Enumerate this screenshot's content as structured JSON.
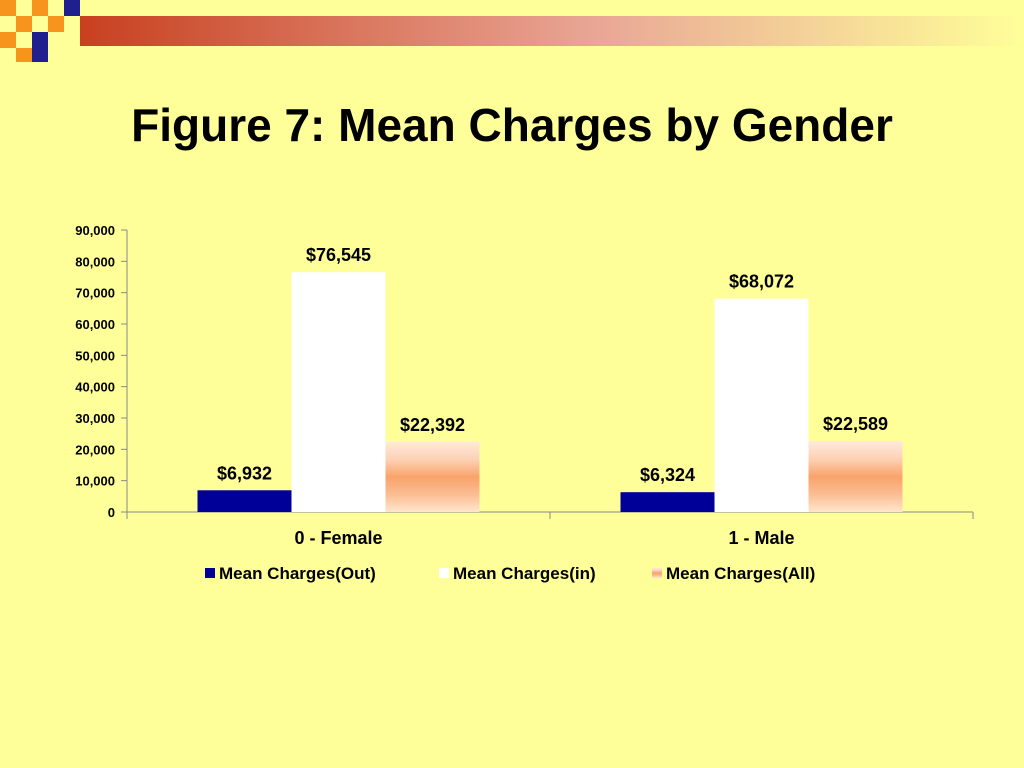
{
  "slide": {
    "title": "Figure 7: Mean Charges by Gender"
  },
  "colors": {
    "background": "#FFFF99",
    "series_out": "#000099",
    "series_in": "#FFFFFF",
    "series_all_light": "#FFE6CC",
    "series_all_dark": "#F9A36B",
    "deco_red": "#D14A2A",
    "deco_orange": "#F7941E",
    "deco_navy": "#1F1F8F"
  },
  "chart_data": {
    "type": "bar",
    "title": "",
    "categories": [
      "0 - Female",
      "1 - Male"
    ],
    "series": [
      {
        "name": "Mean Charges(Out)",
        "values": [
          6932,
          6324
        ],
        "labels": [
          "$6,932",
          "$6,324"
        ]
      },
      {
        "name": "Mean Charges(in)",
        "values": [
          76545,
          68072
        ],
        "labels": [
          "$76,545",
          "$68,072"
        ]
      },
      {
        "name": "Mean Charges(All)",
        "values": [
          22392,
          22589
        ],
        "labels": [
          "$22,392",
          "$22,589"
        ]
      }
    ],
    "yticks": [
      "0",
      "10,000",
      "20,000",
      "30,000",
      "40,000",
      "50,000",
      "60,000",
      "70,000",
      "80,000",
      "90,000"
    ],
    "ylim": [
      0,
      90000
    ],
    "xlabel": "",
    "ylabel": "",
    "grid": false,
    "legend_position": "bottom"
  }
}
